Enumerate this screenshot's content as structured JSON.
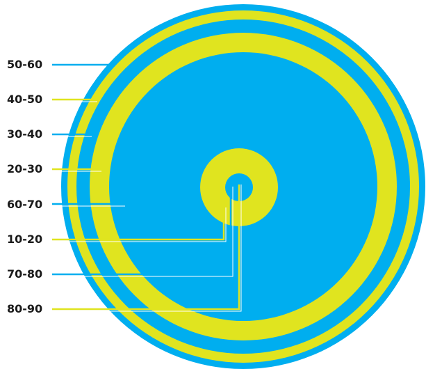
{
  "colors": {
    "blue": "#00aeef",
    "yellow": "#e0e41f",
    "background": "#ffffff",
    "text": "#1a1a1a"
  },
  "bands": [
    {
      "label": "50-60",
      "color": "blue"
    },
    {
      "label": "40-50",
      "color": "yellow"
    },
    {
      "label": "30-40",
      "color": "blue"
    },
    {
      "label": "20-30",
      "color": "yellow"
    },
    {
      "label": "60-70",
      "color": "blue"
    },
    {
      "label": "10-20",
      "color": "yellow"
    },
    {
      "label": "70-80",
      "color": "blue"
    },
    {
      "label": "80-90",
      "color": "yellow"
    }
  ]
}
